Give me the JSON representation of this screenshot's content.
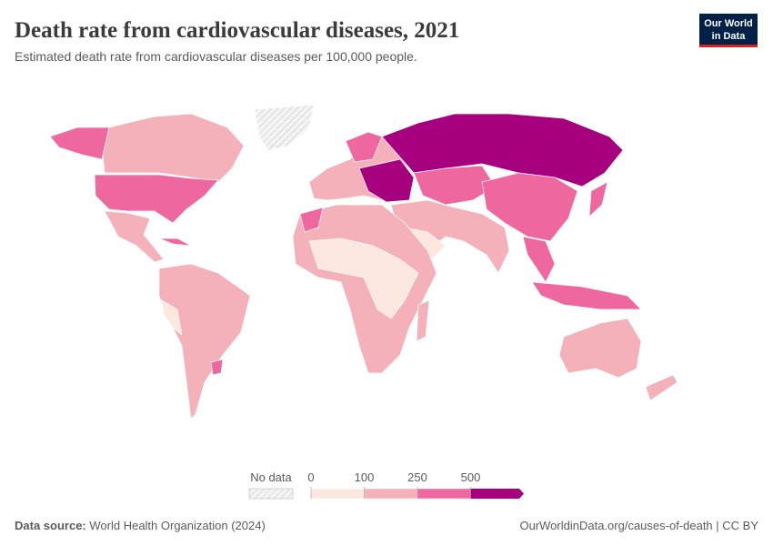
{
  "header": {
    "title": "Death rate from cardiovascular diseases, 2021",
    "subtitle": "Estimated death rate from cardiovascular diseases per 100,000 people.",
    "logo": [
      "Our World",
      "in Data"
    ]
  },
  "legend": {
    "no_data_label": "No data",
    "ticks": [
      0,
      100,
      250,
      500
    ],
    "colors": [
      "#fde8e0",
      "#f5b1ba",
      "#ef679f",
      "#a7007f"
    ]
  },
  "footer": {
    "source_label": "Data source:",
    "source": "World Health Organization (2024)",
    "link": "OurWorldinData.org/causes-of-death | CC BY"
  }
}
